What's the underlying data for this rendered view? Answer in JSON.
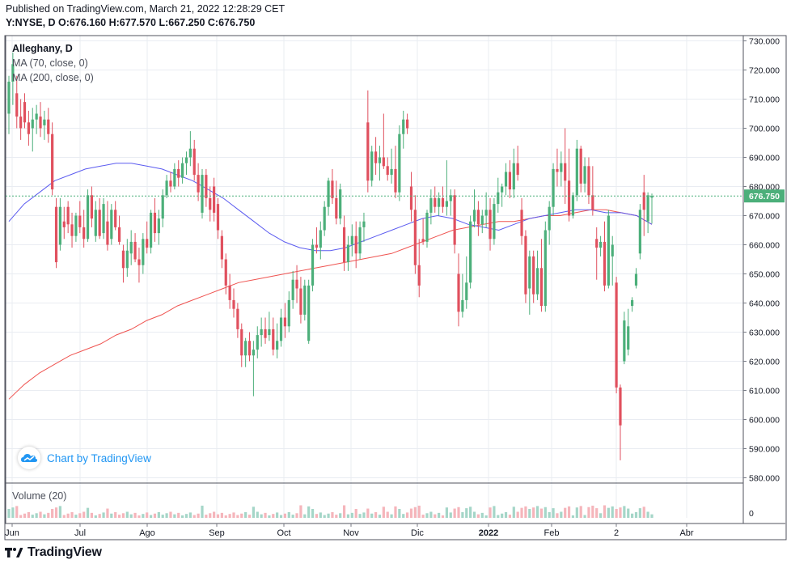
{
  "header": {
    "published": "Published on TradingView.com, March 21, 2022 12:28:29 CET",
    "ohlc": "Y:NYSE, D  O:676.160 H:677.570 L:667.250 C:676.750"
  },
  "legend": {
    "symbol": "Alleghany, D",
    "ma70": "MA (70, close, 0)",
    "ma200": "MA (200, close, 0)",
    "volume": "Volume (20)"
  },
  "badge": {
    "text": "Chart by TradingView"
  },
  "footer": {
    "brand": "TradingView"
  },
  "colors": {
    "up": "#26a69a",
    "up_body": "#4caf7a",
    "down": "#e0505e",
    "ma70": "#5b5bf0",
    "ma200": "#ef5350",
    "last": "#4caf7a",
    "grid": "#e9ecf2"
  },
  "chart_data": {
    "type": "candlestick",
    "ylim": [
      580,
      730
    ],
    "y_ticks": [
      "730.000",
      "720.000",
      "710.000",
      "700.000",
      "690.000",
      "680.000",
      "670.000",
      "660.000",
      "650.000",
      "640.000",
      "630.000",
      "620.000",
      "610.000",
      "600.000",
      "590.000",
      "580.000"
    ],
    "x_ticks": [
      "Jun",
      "Jul",
      "Ago",
      "Sep",
      "Oct",
      "Nov",
      "Dic",
      "2022",
      "Feb",
      "2",
      "Abr"
    ],
    "last_price_label": "676.750",
    "last_price": 676.75,
    "volume_axis_label": "0",
    "candles": [
      {
        "o": 705,
        "h": 718,
        "l": 698,
        "c": 716
      },
      {
        "o": 716,
        "h": 726,
        "l": 708,
        "c": 722
      },
      {
        "o": 712,
        "h": 718,
        "l": 700,
        "c": 704
      },
      {
        "o": 704,
        "h": 710,
        "l": 696,
        "c": 700
      },
      {
        "o": 709,
        "h": 712,
        "l": 700,
        "c": 702
      },
      {
        "o": 702,
        "h": 706,
        "l": 694,
        "c": 698
      },
      {
        "o": 700,
        "h": 707,
        "l": 692,
        "c": 703
      },
      {
        "o": 703,
        "h": 708,
        "l": 698,
        "c": 705
      },
      {
        "o": 704,
        "h": 709,
        "l": 697,
        "c": 700
      },
      {
        "o": 701,
        "h": 706,
        "l": 696,
        "c": 703
      },
      {
        "o": 703,
        "h": 707,
        "l": 695,
        "c": 698
      },
      {
        "o": 698,
        "h": 702,
        "l": 677,
        "c": 679
      },
      {
        "o": 673,
        "h": 676,
        "l": 652,
        "c": 654
      },
      {
        "o": 660,
        "h": 676,
        "l": 658,
        "c": 673
      },
      {
        "o": 668,
        "h": 673,
        "l": 662,
        "c": 666
      },
      {
        "o": 673,
        "h": 675,
        "l": 664,
        "c": 667
      },
      {
        "o": 667,
        "h": 671,
        "l": 659,
        "c": 663
      },
      {
        "o": 663,
        "h": 671,
        "l": 661,
        "c": 670
      },
      {
        "o": 670,
        "h": 675,
        "l": 664,
        "c": 666
      },
      {
        "o": 666,
        "h": 672,
        "l": 659,
        "c": 662
      },
      {
        "o": 662,
        "h": 679,
        "l": 661,
        "c": 677
      },
      {
        "o": 677,
        "h": 680,
        "l": 666,
        "c": 669
      },
      {
        "o": 663,
        "h": 675,
        "l": 661,
        "c": 672
      },
      {
        "o": 672,
        "h": 676,
        "l": 662,
        "c": 663
      },
      {
        "o": 664,
        "h": 676,
        "l": 662,
        "c": 674
      },
      {
        "o": 668,
        "h": 675,
        "l": 658,
        "c": 660
      },
      {
        "o": 662,
        "h": 674,
        "l": 660,
        "c": 672
      },
      {
        "o": 672,
        "h": 675,
        "l": 665,
        "c": 666
      },
      {
        "o": 666,
        "h": 670,
        "l": 660,
        "c": 661
      },
      {
        "o": 658,
        "h": 660,
        "l": 647,
        "c": 652
      },
      {
        "o": 652,
        "h": 662,
        "l": 649,
        "c": 658
      },
      {
        "o": 657,
        "h": 665,
        "l": 653,
        "c": 661
      },
      {
        "o": 661,
        "h": 664,
        "l": 654,
        "c": 655
      },
      {
        "o": 655,
        "h": 659,
        "l": 647,
        "c": 653
      },
      {
        "o": 653,
        "h": 664,
        "l": 650,
        "c": 662
      },
      {
        "o": 662,
        "h": 668,
        "l": 657,
        "c": 659
      },
      {
        "o": 659,
        "h": 672,
        "l": 657,
        "c": 671
      },
      {
        "o": 671,
        "h": 676,
        "l": 661,
        "c": 664
      },
      {
        "o": 664,
        "h": 672,
        "l": 660,
        "c": 669
      },
      {
        "o": 669,
        "h": 679,
        "l": 666,
        "c": 677
      },
      {
        "o": 677,
        "h": 684,
        "l": 676,
        "c": 682
      },
      {
        "o": 682,
        "h": 685,
        "l": 678,
        "c": 680
      },
      {
        "o": 680,
        "h": 688,
        "l": 679,
        "c": 686
      },
      {
        "o": 686,
        "h": 689,
        "l": 680,
        "c": 683
      },
      {
        "o": 683,
        "h": 690,
        "l": 681,
        "c": 688
      },
      {
        "o": 688,
        "h": 692,
        "l": 684,
        "c": 690
      },
      {
        "o": 690,
        "h": 699,
        "l": 687,
        "c": 693
      },
      {
        "o": 693,
        "h": 696,
        "l": 682,
        "c": 684
      },
      {
        "o": 684,
        "h": 688,
        "l": 675,
        "c": 678
      },
      {
        "o": 671,
        "h": 686,
        "l": 669,
        "c": 684
      },
      {
        "o": 684,
        "h": 686,
        "l": 673,
        "c": 676
      },
      {
        "o": 676,
        "h": 680,
        "l": 668,
        "c": 672
      },
      {
        "o": 680,
        "h": 683,
        "l": 668,
        "c": 671
      },
      {
        "o": 674,
        "h": 676,
        "l": 662,
        "c": 665
      },
      {
        "o": 663,
        "h": 665,
        "l": 652,
        "c": 655
      },
      {
        "o": 655,
        "h": 657,
        "l": 643,
        "c": 646
      },
      {
        "o": 646,
        "h": 650,
        "l": 638,
        "c": 641
      },
      {
        "o": 641,
        "h": 645,
        "l": 635,
        "c": 638
      },
      {
        "o": 638,
        "h": 640,
        "l": 628,
        "c": 631
      },
      {
        "o": 631,
        "h": 633,
        "l": 618,
        "c": 622
      },
      {
        "o": 622,
        "h": 628,
        "l": 618,
        "c": 627
      },
      {
        "o": 627,
        "h": 630,
        "l": 620,
        "c": 622
      },
      {
        "o": 622,
        "h": 627,
        "l": 608,
        "c": 624
      },
      {
        "o": 624,
        "h": 632,
        "l": 621,
        "c": 629
      },
      {
        "o": 629,
        "h": 635,
        "l": 625,
        "c": 631
      },
      {
        "o": 631,
        "h": 635,
        "l": 626,
        "c": 628
      },
      {
        "o": 629,
        "h": 637,
        "l": 627,
        "c": 631
      },
      {
        "o": 631,
        "h": 635,
        "l": 622,
        "c": 624
      },
      {
        "o": 624,
        "h": 633,
        "l": 621,
        "c": 627
      },
      {
        "o": 627,
        "h": 638,
        "l": 625,
        "c": 635
      },
      {
        "o": 635,
        "h": 640,
        "l": 628,
        "c": 632
      },
      {
        "o": 632,
        "h": 644,
        "l": 630,
        "c": 641
      },
      {
        "o": 641,
        "h": 651,
        "l": 638,
        "c": 648
      },
      {
        "o": 648,
        "h": 653,
        "l": 640,
        "c": 645
      },
      {
        "o": 645,
        "h": 649,
        "l": 633,
        "c": 636
      },
      {
        "o": 636,
        "h": 648,
        "l": 634,
        "c": 646
      },
      {
        "o": 627,
        "h": 648,
        "l": 626,
        "c": 646
      },
      {
        "o": 646,
        "h": 662,
        "l": 644,
        "c": 660
      },
      {
        "o": 660,
        "h": 666,
        "l": 657,
        "c": 659
      },
      {
        "o": 659,
        "h": 668,
        "l": 655,
        "c": 665
      },
      {
        "o": 665,
        "h": 675,
        "l": 663,
        "c": 673
      },
      {
        "o": 673,
        "h": 683,
        "l": 670,
        "c": 682
      },
      {
        "o": 682,
        "h": 686,
        "l": 674,
        "c": 676
      },
      {
        "o": 676,
        "h": 682,
        "l": 667,
        "c": 669
      },
      {
        "o": 669,
        "h": 681,
        "l": 667,
        "c": 679
      },
      {
        "o": 666,
        "h": 670,
        "l": 651,
        "c": 654
      },
      {
        "o": 654,
        "h": 663,
        "l": 651,
        "c": 660
      },
      {
        "o": 660,
        "h": 667,
        "l": 656,
        "c": 663
      },
      {
        "o": 663,
        "h": 668,
        "l": 652,
        "c": 657
      },
      {
        "o": 657,
        "h": 668,
        "l": 655,
        "c": 666
      },
      {
        "o": 666,
        "h": 671,
        "l": 661,
        "c": 668
      },
      {
        "o": 702,
        "h": 713,
        "l": 678,
        "c": 682
      },
      {
        "o": 682,
        "h": 694,
        "l": 680,
        "c": 692
      },
      {
        "o": 692,
        "h": 697,
        "l": 684,
        "c": 688
      },
      {
        "o": 688,
        "h": 694,
        "l": 682,
        "c": 690
      },
      {
        "o": 690,
        "h": 705,
        "l": 686,
        "c": 687
      },
      {
        "o": 687,
        "h": 690,
        "l": 682,
        "c": 684
      },
      {
        "o": 684,
        "h": 693,
        "l": 681,
        "c": 686
      },
      {
        "o": 686,
        "h": 694,
        "l": 676,
        "c": 678
      },
      {
        "o": 678,
        "h": 701,
        "l": 675,
        "c": 698
      },
      {
        "o": 698,
        "h": 706,
        "l": 693,
        "c": 703
      },
      {
        "o": 703,
        "h": 705,
        "l": 698,
        "c": 700
      },
      {
        "o": 680,
        "h": 685,
        "l": 668,
        "c": 672
      },
      {
        "o": 672,
        "h": 677,
        "l": 650,
        "c": 653
      },
      {
        "o": 653,
        "h": 662,
        "l": 642,
        "c": 646
      },
      {
        "o": 662,
        "h": 669,
        "l": 660,
        "c": 661
      },
      {
        "o": 661,
        "h": 672,
        "l": 659,
        "c": 671
      },
      {
        "o": 671,
        "h": 679,
        "l": 667,
        "c": 676
      },
      {
        "o": 676,
        "h": 680,
        "l": 671,
        "c": 673
      },
      {
        "o": 673,
        "h": 678,
        "l": 670,
        "c": 676
      },
      {
        "o": 676,
        "h": 680,
        "l": 671,
        "c": 673
      },
      {
        "o": 673,
        "h": 689,
        "l": 670,
        "c": 675
      },
      {
        "o": 675,
        "h": 679,
        "l": 670,
        "c": 677
      },
      {
        "o": 677,
        "h": 679,
        "l": 657,
        "c": 660
      },
      {
        "o": 650,
        "h": 657,
        "l": 632,
        "c": 637
      },
      {
        "o": 637,
        "h": 650,
        "l": 635,
        "c": 641
      },
      {
        "o": 641,
        "h": 656,
        "l": 638,
        "c": 647
      },
      {
        "o": 647,
        "h": 670,
        "l": 645,
        "c": 668
      },
      {
        "o": 668,
        "h": 679,
        "l": 666,
        "c": 672
      },
      {
        "o": 672,
        "h": 675,
        "l": 663,
        "c": 667
      },
      {
        "o": 667,
        "h": 672,
        "l": 664,
        "c": 670
      },
      {
        "o": 670,
        "h": 678,
        "l": 666,
        "c": 672
      },
      {
        "o": 672,
        "h": 676,
        "l": 658,
        "c": 662
      },
      {
        "o": 662,
        "h": 676,
        "l": 660,
        "c": 674
      },
      {
        "o": 674,
        "h": 683,
        "l": 671,
        "c": 678
      },
      {
        "o": 678,
        "h": 681,
        "l": 673,
        "c": 680
      },
      {
        "o": 680,
        "h": 688,
        "l": 677,
        "c": 685
      },
      {
        "o": 685,
        "h": 689,
        "l": 676,
        "c": 679
      },
      {
        "o": 679,
        "h": 693,
        "l": 676,
        "c": 688
      },
      {
        "o": 688,
        "h": 694,
        "l": 682,
        "c": 684
      },
      {
        "o": 672,
        "h": 676,
        "l": 660,
        "c": 663
      },
      {
        "o": 663,
        "h": 665,
        "l": 640,
        "c": 643
      },
      {
        "o": 645,
        "h": 658,
        "l": 636,
        "c": 656
      },
      {
        "o": 656,
        "h": 658,
        "l": 640,
        "c": 643
      },
      {
        "o": 643,
        "h": 658,
        "l": 641,
        "c": 652
      },
      {
        "o": 652,
        "h": 662,
        "l": 637,
        "c": 639
      },
      {
        "o": 639,
        "h": 668,
        "l": 637,
        "c": 665
      },
      {
        "o": 665,
        "h": 675,
        "l": 660,
        "c": 673
      },
      {
        "o": 673,
        "h": 688,
        "l": 670,
        "c": 686
      },
      {
        "o": 686,
        "h": 693,
        "l": 680,
        "c": 685
      },
      {
        "o": 685,
        "h": 692,
        "l": 680,
        "c": 688
      },
      {
        "o": 688,
        "h": 700,
        "l": 674,
        "c": 682
      },
      {
        "o": 682,
        "h": 693,
        "l": 668,
        "c": 670
      },
      {
        "o": 670,
        "h": 678,
        "l": 669,
        "c": 677
      },
      {
        "o": 677,
        "h": 696,
        "l": 675,
        "c": 693
      },
      {
        "o": 693,
        "h": 694,
        "l": 678,
        "c": 681
      },
      {
        "o": 681,
        "h": 690,
        "l": 678,
        "c": 687
      },
      {
        "o": 687,
        "h": 690,
        "l": 674,
        "c": 677
      },
      {
        "o": 677,
        "h": 687,
        "l": 670,
        "c": 672
      },
      {
        "o": 662,
        "h": 666,
        "l": 648,
        "c": 659
      },
      {
        "o": 659,
        "h": 663,
        "l": 656,
        "c": 661
      },
      {
        "o": 661,
        "h": 668,
        "l": 644,
        "c": 646
      },
      {
        "o": 646,
        "h": 672,
        "l": 645,
        "c": 670
      },
      {
        "o": 656,
        "h": 663,
        "l": 646,
        "c": 660
      },
      {
        "o": 647,
        "h": 649,
        "l": 609,
        "c": 611
      },
      {
        "o": 611,
        "h": 612,
        "l": 586,
        "c": 598
      },
      {
        "o": 620,
        "h": 637,
        "l": 619,
        "c": 634
      },
      {
        "o": 624,
        "h": 638,
        "l": 622,
        "c": 632
      },
      {
        "o": 639,
        "h": 642,
        "l": 637,
        "c": 641
      },
      {
        "o": 646,
        "h": 652,
        "l": 645,
        "c": 650
      },
      {
        "o": 657,
        "h": 674,
        "l": 655,
        "c": 672
      },
      {
        "o": 678,
        "h": 684,
        "l": 663,
        "c": 672
      },
      {
        "o": 668,
        "h": 678,
        "l": 664,
        "c": 677
      },
      {
        "o": 676.16,
        "h": 677.57,
        "l": 667.25,
        "c": 676.75
      }
    ],
    "ma70": [
      668,
      674,
      678,
      682,
      684,
      686,
      687,
      688,
      688,
      687,
      686,
      684,
      682,
      679,
      676,
      672,
      668,
      664,
      661,
      659,
      658,
      658,
      659,
      661,
      663,
      665,
      667,
      669,
      670,
      669,
      667,
      666,
      665,
      667,
      669,
      670,
      671,
      672,
      672,
      671,
      671,
      670,
      667
    ],
    "ma200": [
      607,
      612,
      616,
      619,
      622,
      624,
      626,
      629,
      631,
      634,
      636,
      639,
      641,
      643,
      645,
      647,
      648,
      649,
      650,
      651,
      652,
      653,
      654,
      655,
      656,
      657,
      659,
      661,
      663,
      665,
      666,
      667,
      668,
      668,
      669,
      670,
      670,
      671,
      672,
      672,
      671,
      670,
      667
    ]
  }
}
